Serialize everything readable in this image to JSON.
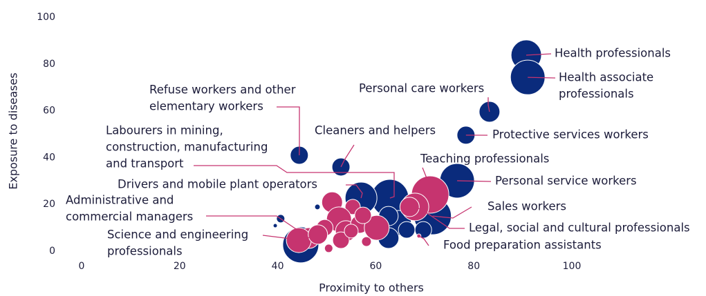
{
  "chart_data": {
    "type": "scatter",
    "xlabel": "Proximity to others",
    "ylabel": "Exposure to diseases",
    "xlim": [
      0,
      100
    ],
    "ylim": [
      0,
      100
    ],
    "xticks": [
      0,
      20,
      40,
      60,
      80,
      100
    ],
    "yticks": [
      0,
      20,
      40,
      60,
      80,
      100
    ],
    "grid": false,
    "series": [
      {
        "color": "#0a2b7c",
        "x": [
          90.7,
          91.0,
          83.2,
          78.4,
          76.6,
          44.4,
          52.9,
          62.9,
          57.0,
          71.6,
          44.7,
          64.7,
          62.6,
          62.6,
          66.3,
          69.7,
          48.1,
          40.6,
          39.5
        ],
        "values": [
          83.8,
          74.3,
          59.6,
          49.6,
          30.1,
          41.0,
          36.0,
          22.7,
          22.7,
          15.0,
          2.7,
          12.1,
          15.0,
          5.6,
          9.1,
          9.1,
          18.9,
          13.9,
          10.9
        ],
        "sizes": [
          22,
          25,
          15,
          13,
          25,
          13,
          13,
          27,
          23,
          27,
          26,
          18,
          14,
          15,
          12,
          12,
          4,
          6,
          3
        ],
        "labels": [
          [
            "Health professionals"
          ],
          [
            "Health associate",
            "professionals"
          ],
          [
            "Personal care workers"
          ],
          [
            "Protective services workers"
          ],
          [
            "Personal service workers"
          ],
          [
            "Refuse workers and other",
            "elementary workers"
          ],
          [
            "Cleaners and helpers"
          ],
          [
            "Labourers in mining,",
            "construction, manufacturing",
            "and transport"
          ],
          [
            "Drivers and mobile plant operators"
          ],
          [
            "Sales workers"
          ],
          [
            "Science and engineering",
            "professionals"
          ],
          null,
          null,
          null,
          null,
          null,
          null,
          null,
          null
        ]
      },
      {
        "color": "#c6346f",
        "x": [
          71.1,
          68.0,
          46.4,
          68.8,
          44.3,
          51.1,
          55.3,
          52.5,
          49.6,
          53.9,
          56.7,
          60.2,
          52.9,
          55.0,
          58.1,
          50.4,
          48.2,
          57.4,
          66.9
        ],
        "values": [
          24.2,
          18.9,
          5.6,
          6.5,
          4.7,
          20.9,
          18.9,
          13.6,
          10.0,
          8.6,
          11.5,
          10.0,
          4.7,
          8.6,
          4.1,
          1.2,
          7.1,
          15.3,
          18.9
        ],
        "sizes": [
          27,
          20,
          15,
          3,
          18,
          15,
          11,
          18,
          12,
          15,
          13,
          18,
          12,
          10,
          7,
          6,
          14,
          12,
          14
        ],
        "labels": [
          [
            "Teaching professionals"
          ],
          [
            "Legal, social and cultural professionals"
          ],
          [
            "Administrative and",
            "commercial managers"
          ],
          [
            "Food preparation assistants"
          ],
          null,
          null,
          null,
          null,
          null,
          null,
          null,
          null,
          null,
          null,
          null,
          null,
          null,
          null,
          null
        ]
      }
    ]
  }
}
